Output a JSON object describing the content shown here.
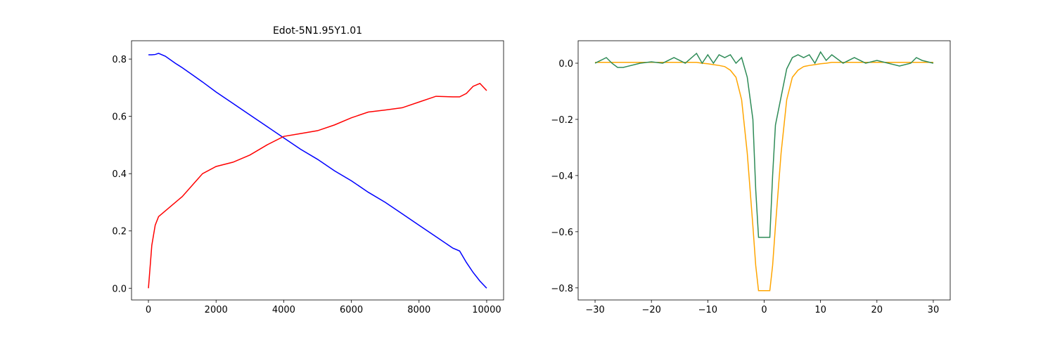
{
  "chart_data": [
    {
      "type": "line",
      "title": "Edot-5N1.95Y1.01",
      "x": [
        0,
        100,
        200,
        300,
        500,
        800,
        1000,
        1300,
        1600,
        2000,
        2500,
        3000,
        3500,
        4000,
        4500,
        5000,
        5500,
        6000,
        6500,
        7000,
        7500,
        8000,
        8500,
        9000,
        9200,
        9400,
        9600,
        9800,
        10000
      ],
      "series": [
        {
          "color": "#0000ff",
          "values": [
            0.815,
            0.815,
            0.816,
            0.82,
            0.81,
            0.785,
            0.77,
            0.745,
            0.72,
            0.685,
            0.645,
            0.605,
            0.565,
            0.525,
            0.485,
            0.45,
            0.41,
            0.375,
            0.335,
            0.3,
            0.26,
            0.22,
            0.18,
            0.14,
            0.13,
            0.09,
            0.055,
            0.025,
            0.0
          ]
        },
        {
          "color": "#ff0000",
          "values": [
            0,
            0.15,
            0.22,
            0.25,
            0.27,
            0.3,
            0.32,
            0.36,
            0.4,
            0.425,
            0.44,
            0.465,
            0.5,
            0.53,
            0.54,
            0.55,
            0.57,
            0.595,
            0.615,
            0.622,
            0.63,
            0.65,
            0.67,
            0.668,
            0.668,
            0.68,
            0.705,
            0.715,
            0.69
          ]
        }
      ],
      "xlim": [
        -500,
        10500
      ],
      "ylim": [
        -0.041,
        0.864
      ],
      "xticks": [
        0,
        2000,
        4000,
        6000,
        8000,
        10000
      ],
      "yticks": [
        {
          "value": 0,
          "label": "0.0"
        },
        {
          "value": 0.2,
          "label": "0.2"
        },
        {
          "value": 0.4,
          "label": "0.4"
        },
        {
          "value": 0.6,
          "label": "0.6"
        },
        {
          "value": 0.8,
          "label": "0.8"
        }
      ]
    },
    {
      "type": "line",
      "x": [
        -30,
        -28,
        -27,
        -26,
        -25,
        -22,
        -20,
        -18,
        -16,
        -14,
        -12,
        -11,
        -10,
        -9,
        -8,
        -7,
        -6,
        -5,
        -4,
        -3,
        -2,
        -1.5,
        -1,
        1,
        1.5,
        2,
        3,
        4,
        5,
        6,
        7,
        8,
        9,
        10,
        11,
        12,
        14,
        16,
        18,
        20,
        22,
        24,
        26,
        27,
        28,
        30
      ],
      "series": [
        {
          "color": "#ffa500",
          "values": [
            0.003,
            0.003,
            0.003,
            0.003,
            0.003,
            0.003,
            0.003,
            0.003,
            0.003,
            0.003,
            0.003,
            0,
            -0.002,
            -0.005,
            -0.008,
            -0.012,
            -0.025,
            -0.05,
            -0.13,
            -0.32,
            -0.58,
            -0.72,
            -0.81,
            -0.81,
            -0.72,
            -0.58,
            -0.32,
            -0.13,
            -0.05,
            -0.025,
            -0.012,
            -0.008,
            -0.005,
            -0.002,
            0,
            0.003,
            0.003,
            0.003,
            0.003,
            0.003,
            0.003,
            0.003,
            0.003,
            0.003,
            0.003,
            0.003
          ]
        },
        {
          "color": "#2e8b57",
          "values": [
            0,
            0.02,
            0,
            -0.015,
            -0.015,
            0,
            0.005,
            0,
            0.02,
            0,
            0.035,
            0,
            0.03,
            0,
            0.03,
            0.02,
            0.03,
            0,
            0.02,
            -0.05,
            -0.2,
            -0.45,
            -0.62,
            -0.62,
            -0.4,
            -0.22,
            -0.12,
            -0.02,
            0.02,
            0.03,
            0.02,
            0.03,
            0,
            0.04,
            0.01,
            0.03,
            0,
            0.02,
            0,
            0.01,
            0,
            -0.01,
            0,
            0.02,
            0.01,
            0
          ]
        }
      ],
      "xlim": [
        -33,
        33
      ],
      "ylim": [
        -0.843,
        0.08
      ],
      "xticks": [
        {
          "value": -30,
          "label": "−30"
        },
        {
          "value": -20,
          "label": "−20"
        },
        {
          "value": -10,
          "label": "−10"
        },
        0,
        10,
        20,
        30
      ],
      "yticks": [
        {
          "value": 0,
          "label": "0.0"
        },
        {
          "value": -0.2,
          "label": "−0.2"
        },
        {
          "value": -0.4,
          "label": "−0.4"
        },
        {
          "value": -0.6,
          "label": "−0.6"
        },
        {
          "value": -0.8,
          "label": "−0.8"
        }
      ]
    }
  ]
}
